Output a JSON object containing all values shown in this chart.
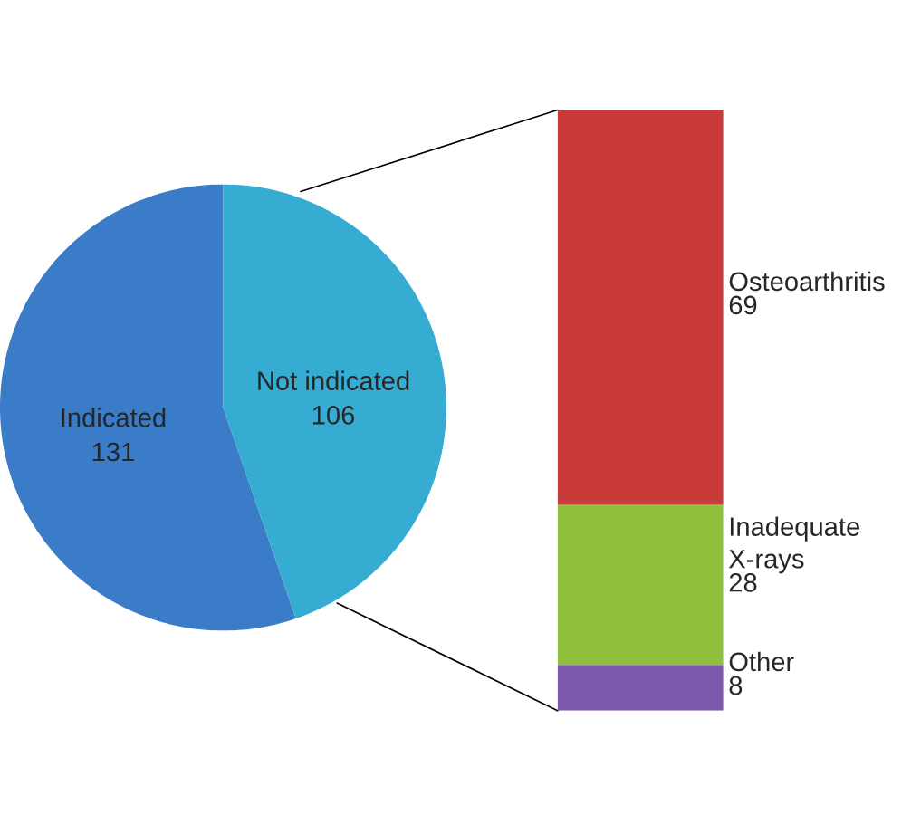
{
  "chart_data": [
    {
      "type": "pie",
      "categories": [
        "Indicated",
        "Not indicated"
      ],
      "values": [
        131,
        106
      ],
      "colors": [
        "#3b7cc9",
        "#36acd2"
      ],
      "data_labels": true
    },
    {
      "type": "bar",
      "stacked": true,
      "categories": [
        null
      ],
      "data_labels": true,
      "series": [
        {
          "name": "Other",
          "color": "#7e58aa",
          "values": [
            8
          ]
        },
        {
          "name": "Inadequate X-rays",
          "color": "#8fc03c",
          "values": [
            28
          ]
        },
        {
          "name": "Osteoarthritis",
          "color": "#c93a3a",
          "values": [
            69
          ]
        }
      ]
    }
  ]
}
